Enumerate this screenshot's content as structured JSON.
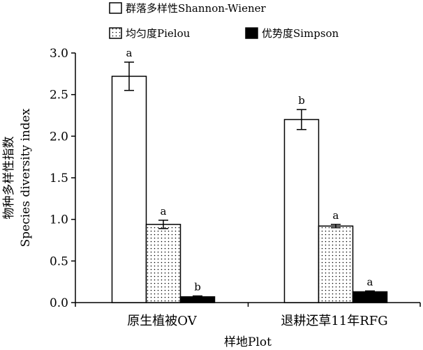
{
  "chart_data": {
    "type": "bar",
    "categories": [
      "原生植被OV",
      "退耕还草11年RFG"
    ],
    "series": [
      {
        "name": "群落多样性Shannon-Wiener",
        "values": [
          2.72,
          2.2
        ],
        "errors": [
          0.17,
          0.12
        ],
        "labels": [
          "a",
          "b"
        ],
        "fill": "white"
      },
      {
        "name": "均匀度Pielou",
        "values": [
          0.94,
          0.92
        ],
        "errors": [
          0.05,
          0.02
        ],
        "labels": [
          "a",
          "a"
        ],
        "fill": "dots"
      },
      {
        "name": "优势度Simpson",
        "values": [
          0.07,
          0.13
        ],
        "errors": [
          0.01,
          0.01
        ],
        "labels": [
          "b",
          "a"
        ],
        "fill": "black"
      }
    ],
    "ylabel_cn": "物种多样性指数",
    "ylabel_en": "Species diversity index",
    "xlabel": "样地Plot",
    "ylim": [
      0,
      3.0
    ],
    "yticks": [
      "0.0",
      "0.5",
      "1.0",
      "1.5",
      "2.0",
      "2.5",
      "3.0"
    ],
    "legend_position": "top"
  }
}
